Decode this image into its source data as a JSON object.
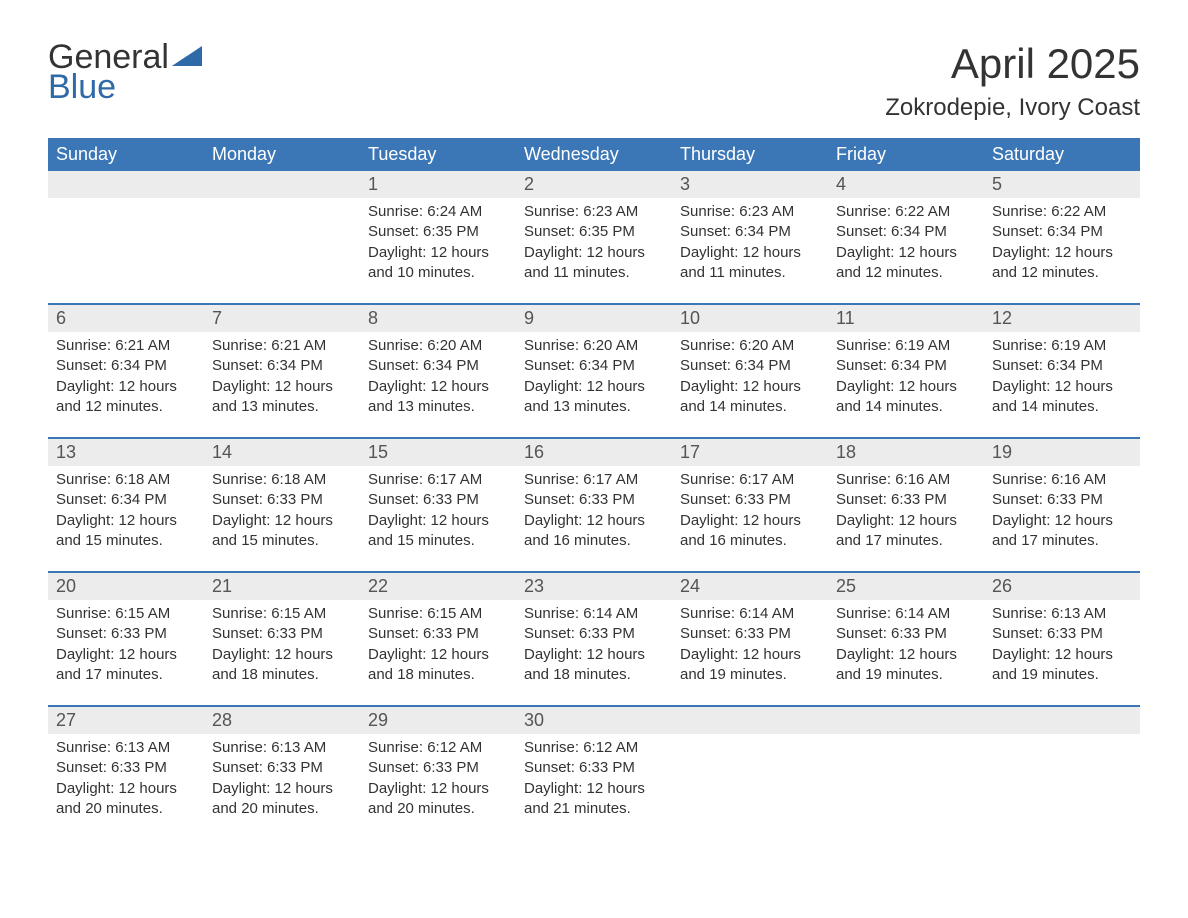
{
  "logo": {
    "general": "General",
    "blue": "Blue",
    "shape_color": "#2e6aa8"
  },
  "title": "April 2025",
  "subtitle": "Zokrodepie, Ivory Coast",
  "colors": {
    "header_bg": "#3b77b7",
    "header_text": "#ffffff",
    "daynum_bg": "#ececec",
    "body_text": "#333333",
    "daynum_text": "#555555",
    "row_divider": "#3b77b7",
    "background": "#ffffff"
  },
  "typography": {
    "title_fontsize": 42,
    "subtitle_fontsize": 24,
    "weekday_fontsize": 18,
    "daynum_fontsize": 18,
    "detail_fontsize": 15,
    "logo_fontsize": 34
  },
  "weekdays": [
    "Sunday",
    "Monday",
    "Tuesday",
    "Wednesday",
    "Thursday",
    "Friday",
    "Saturday"
  ],
  "weeks": [
    [
      {
        "day": "",
        "sunrise": "",
        "sunset": "",
        "daylight": ""
      },
      {
        "day": "",
        "sunrise": "",
        "sunset": "",
        "daylight": ""
      },
      {
        "day": "1",
        "sunrise": "Sunrise: 6:24 AM",
        "sunset": "Sunset: 6:35 PM",
        "daylight": "Daylight: 12 hours and 10 minutes."
      },
      {
        "day": "2",
        "sunrise": "Sunrise: 6:23 AM",
        "sunset": "Sunset: 6:35 PM",
        "daylight": "Daylight: 12 hours and 11 minutes."
      },
      {
        "day": "3",
        "sunrise": "Sunrise: 6:23 AM",
        "sunset": "Sunset: 6:34 PM",
        "daylight": "Daylight: 12 hours and 11 minutes."
      },
      {
        "day": "4",
        "sunrise": "Sunrise: 6:22 AM",
        "sunset": "Sunset: 6:34 PM",
        "daylight": "Daylight: 12 hours and 12 minutes."
      },
      {
        "day": "5",
        "sunrise": "Sunrise: 6:22 AM",
        "sunset": "Sunset: 6:34 PM",
        "daylight": "Daylight: 12 hours and 12 minutes."
      }
    ],
    [
      {
        "day": "6",
        "sunrise": "Sunrise: 6:21 AM",
        "sunset": "Sunset: 6:34 PM",
        "daylight": "Daylight: 12 hours and 12 minutes."
      },
      {
        "day": "7",
        "sunrise": "Sunrise: 6:21 AM",
        "sunset": "Sunset: 6:34 PM",
        "daylight": "Daylight: 12 hours and 13 minutes."
      },
      {
        "day": "8",
        "sunrise": "Sunrise: 6:20 AM",
        "sunset": "Sunset: 6:34 PM",
        "daylight": "Daylight: 12 hours and 13 minutes."
      },
      {
        "day": "9",
        "sunrise": "Sunrise: 6:20 AM",
        "sunset": "Sunset: 6:34 PM",
        "daylight": "Daylight: 12 hours and 13 minutes."
      },
      {
        "day": "10",
        "sunrise": "Sunrise: 6:20 AM",
        "sunset": "Sunset: 6:34 PM",
        "daylight": "Daylight: 12 hours and 14 minutes."
      },
      {
        "day": "11",
        "sunrise": "Sunrise: 6:19 AM",
        "sunset": "Sunset: 6:34 PM",
        "daylight": "Daylight: 12 hours and 14 minutes."
      },
      {
        "day": "12",
        "sunrise": "Sunrise: 6:19 AM",
        "sunset": "Sunset: 6:34 PM",
        "daylight": "Daylight: 12 hours and 14 minutes."
      }
    ],
    [
      {
        "day": "13",
        "sunrise": "Sunrise: 6:18 AM",
        "sunset": "Sunset: 6:34 PM",
        "daylight": "Daylight: 12 hours and 15 minutes."
      },
      {
        "day": "14",
        "sunrise": "Sunrise: 6:18 AM",
        "sunset": "Sunset: 6:33 PM",
        "daylight": "Daylight: 12 hours and 15 minutes."
      },
      {
        "day": "15",
        "sunrise": "Sunrise: 6:17 AM",
        "sunset": "Sunset: 6:33 PM",
        "daylight": "Daylight: 12 hours and 15 minutes."
      },
      {
        "day": "16",
        "sunrise": "Sunrise: 6:17 AM",
        "sunset": "Sunset: 6:33 PM",
        "daylight": "Daylight: 12 hours and 16 minutes."
      },
      {
        "day": "17",
        "sunrise": "Sunrise: 6:17 AM",
        "sunset": "Sunset: 6:33 PM",
        "daylight": "Daylight: 12 hours and 16 minutes."
      },
      {
        "day": "18",
        "sunrise": "Sunrise: 6:16 AM",
        "sunset": "Sunset: 6:33 PM",
        "daylight": "Daylight: 12 hours and 17 minutes."
      },
      {
        "day": "19",
        "sunrise": "Sunrise: 6:16 AM",
        "sunset": "Sunset: 6:33 PM",
        "daylight": "Daylight: 12 hours and 17 minutes."
      }
    ],
    [
      {
        "day": "20",
        "sunrise": "Sunrise: 6:15 AM",
        "sunset": "Sunset: 6:33 PM",
        "daylight": "Daylight: 12 hours and 17 minutes."
      },
      {
        "day": "21",
        "sunrise": "Sunrise: 6:15 AM",
        "sunset": "Sunset: 6:33 PM",
        "daylight": "Daylight: 12 hours and 18 minutes."
      },
      {
        "day": "22",
        "sunrise": "Sunrise: 6:15 AM",
        "sunset": "Sunset: 6:33 PM",
        "daylight": "Daylight: 12 hours and 18 minutes."
      },
      {
        "day": "23",
        "sunrise": "Sunrise: 6:14 AM",
        "sunset": "Sunset: 6:33 PM",
        "daylight": "Daylight: 12 hours and 18 minutes."
      },
      {
        "day": "24",
        "sunrise": "Sunrise: 6:14 AM",
        "sunset": "Sunset: 6:33 PM",
        "daylight": "Daylight: 12 hours and 19 minutes."
      },
      {
        "day": "25",
        "sunrise": "Sunrise: 6:14 AM",
        "sunset": "Sunset: 6:33 PM",
        "daylight": "Daylight: 12 hours and 19 minutes."
      },
      {
        "day": "26",
        "sunrise": "Sunrise: 6:13 AM",
        "sunset": "Sunset: 6:33 PM",
        "daylight": "Daylight: 12 hours and 19 minutes."
      }
    ],
    [
      {
        "day": "27",
        "sunrise": "Sunrise: 6:13 AM",
        "sunset": "Sunset: 6:33 PM",
        "daylight": "Daylight: 12 hours and 20 minutes."
      },
      {
        "day": "28",
        "sunrise": "Sunrise: 6:13 AM",
        "sunset": "Sunset: 6:33 PM",
        "daylight": "Daylight: 12 hours and 20 minutes."
      },
      {
        "day": "29",
        "sunrise": "Sunrise: 6:12 AM",
        "sunset": "Sunset: 6:33 PM",
        "daylight": "Daylight: 12 hours and 20 minutes."
      },
      {
        "day": "30",
        "sunrise": "Sunrise: 6:12 AM",
        "sunset": "Sunset: 6:33 PM",
        "daylight": "Daylight: 12 hours and 21 minutes."
      },
      {
        "day": "",
        "sunrise": "",
        "sunset": "",
        "daylight": ""
      },
      {
        "day": "",
        "sunrise": "",
        "sunset": "",
        "daylight": ""
      },
      {
        "day": "",
        "sunrise": "",
        "sunset": "",
        "daylight": ""
      }
    ]
  ]
}
